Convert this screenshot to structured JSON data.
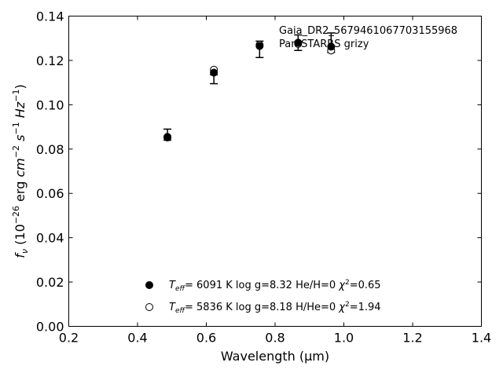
{
  "chart_data": {
    "type": "scatter",
    "annotations": [
      "Gaia_DR2_5679461067703155968",
      "Pan-STARRS grizy"
    ],
    "xlabel": "Wavelength (μm)",
    "ylabel_parts": [
      "f",
      "ν",
      " (10",
      "−26",
      " erg ",
      "cm",
      "−2",
      " ",
      "s",
      "−1",
      " ",
      "Hz",
      "−1",
      ")"
    ],
    "xlim": [
      0.2,
      1.4
    ],
    "ylim": [
      0.0,
      0.14
    ],
    "xticks": [
      0.2,
      0.4,
      0.6,
      0.8,
      1.0,
      1.2,
      1.4
    ],
    "yticks": [
      0.0,
      0.02,
      0.04,
      0.06,
      0.08,
      0.1,
      0.12,
      0.14
    ],
    "xtick_labels": [
      "0.2",
      "0.4",
      "0.6",
      "0.8",
      "1.0",
      "1.2",
      "1.4"
    ],
    "ytick_labels": [
      "0.00",
      "0.02",
      "0.04",
      "0.06",
      "0.08",
      "0.10",
      "0.12",
      "0.14"
    ],
    "grid": false,
    "legend_placement": "lower-center",
    "observed": {
      "x": [
        0.487,
        0.622,
        0.755,
        0.867,
        0.963
      ],
      "y": [
        0.0865,
        0.1115,
        0.125,
        0.128,
        0.128
      ],
      "yerr": [
        0.0025,
        0.002,
        0.0037,
        0.0035,
        0.0044
      ]
    },
    "series": [
      {
        "marker": "filled-circle",
        "legend_parts": [
          "T",
          "eff",
          "=  6091 K  log g=8.32  He/H=0  ",
          "χ",
          "2",
          "=0.65"
        ],
        "x": [
          0.487,
          0.622,
          0.755,
          0.867,
          0.963
        ],
        "y": [
          0.0855,
          0.1145,
          0.1265,
          0.128,
          0.1262
        ]
      },
      {
        "marker": "open-circle",
        "legend_parts": [
          "T",
          "eff",
          "=  5836 K  log g=8.18  H/He=0  ",
          "χ",
          "2",
          "=1.94"
        ],
        "x": [
          0.487,
          0.622,
          0.755,
          0.867,
          0.963
        ],
        "y": [
          0.0852,
          0.1158,
          0.127,
          0.1275,
          0.1245
        ]
      }
    ]
  }
}
